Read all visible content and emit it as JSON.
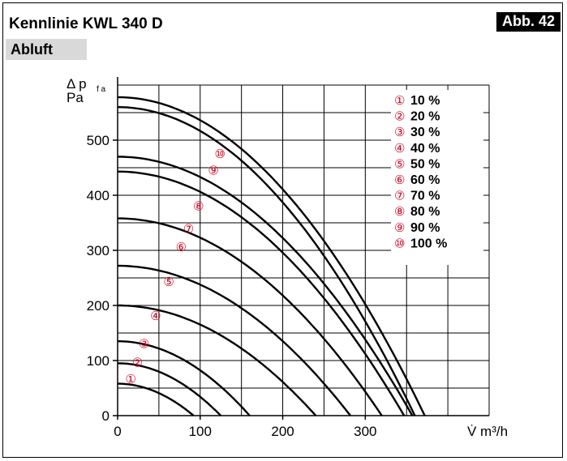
{
  "header": {
    "title": "Kennlinie KWL 340 D",
    "badge": "Abb. 42",
    "subtitle": "Abluft"
  },
  "chart_data": {
    "type": "line",
    "title": "Kennlinie KWL 340 D",
    "xlabel": "V̇ m³/h",
    "ylabel_symbol": "Δ p",
    "ylabel_subscript": "f a",
    "ylabel_unit": "Pa",
    "xlim": [
      0,
      450
    ],
    "ylim": [
      0,
      600
    ],
    "x_ticks": [
      0,
      100,
      200,
      300
    ],
    "y_ticks": [
      0,
      100,
      200,
      300,
      400,
      500
    ],
    "grid": true,
    "legend_position": "top-right",
    "label_color": "#d0001c",
    "series": [
      {
        "name": "10 %",
        "marker": "①",
        "y0": 58,
        "xmax": 92,
        "label_at": [
          16,
          66
        ]
      },
      {
        "name": "20 %",
        "marker": "②",
        "y0": 95,
        "xmax": 125,
        "label_at": [
          24,
          96
        ]
      },
      {
        "name": "30 %",
        "marker": "③",
        "y0": 135,
        "xmax": 160,
        "label_at": [
          32,
          130
        ]
      },
      {
        "name": "40 %",
        "marker": "④",
        "y0": 200,
        "xmax": 240,
        "label_at": [
          46,
          181
        ]
      },
      {
        "name": "50 %",
        "marker": "⑤",
        "y0": 272,
        "xmax": 282,
        "label_at": [
          62,
          243
        ]
      },
      {
        "name": "60 %",
        "marker": "⑥",
        "y0": 358,
        "xmax": 320,
        "label_at": [
          77,
          306
        ]
      },
      {
        "name": "70 %",
        "marker": "⑦",
        "y0": 443,
        "xmax": 347,
        "label_at": [
          86,
          339
        ]
      },
      {
        "name": "80 %",
        "marker": "⑧",
        "y0": 470,
        "xmax": 357,
        "label_at": [
          98,
          380
        ]
      },
      {
        "name": "90 %",
        "marker": "⑨",
        "y0": 560,
        "xmax": 360,
        "label_at": [
          116,
          445
        ]
      },
      {
        "name": "100 %",
        "marker": "⑩",
        "y0": 578,
        "xmax": 372,
        "label_at": [
          124,
          475
        ]
      }
    ]
  }
}
